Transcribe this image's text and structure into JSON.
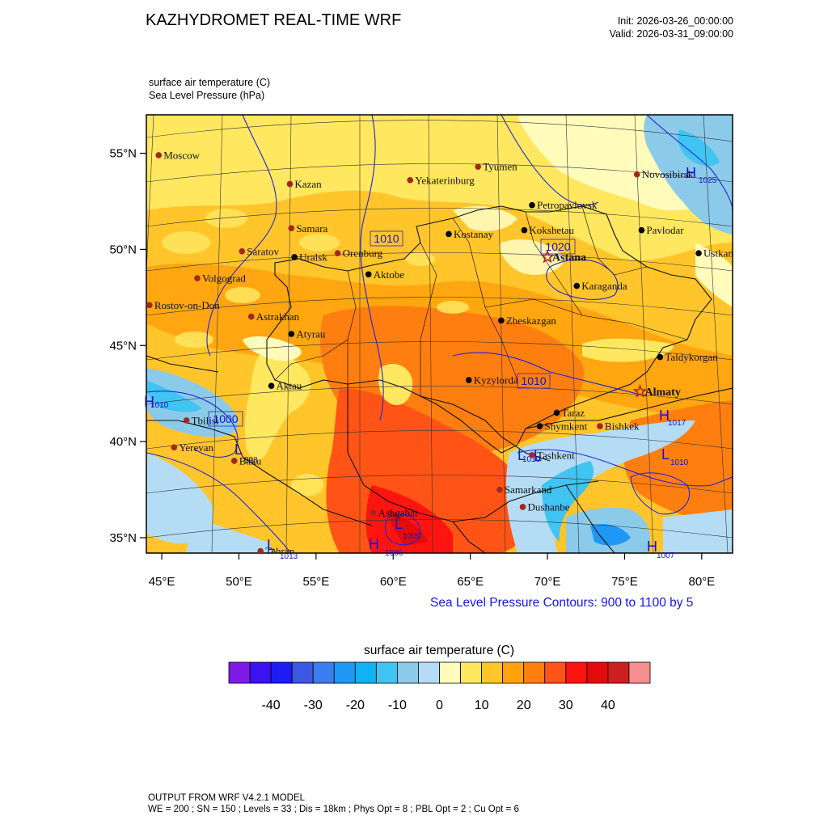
{
  "header": {
    "title": "KAZHYDROMET REAL-TIME WRF",
    "init": "Init: 2026-03-26_00:00:00",
    "valid": "Valid: 2026-03-31_09:00:00",
    "field1": "surface air temperature   (C)",
    "field2": "Sea Level Pressure   (hPa)"
  },
  "map": {
    "lon_range": [
      44,
      82
    ],
    "lat_range": [
      34.2,
      57
    ],
    "lat_ticks": [
      {
        "value": 55,
        "label": "55°N"
      },
      {
        "value": 50,
        "label": "50°N"
      },
      {
        "value": 45,
        "label": "45°N"
      },
      {
        "value": 40,
        "label": "40°N"
      },
      {
        "value": 35,
        "label": "35°N"
      }
    ],
    "lon_ticks": [
      {
        "value": 45,
        "label": "45°E"
      },
      {
        "value": 50,
        "label": "50°E"
      },
      {
        "value": 55,
        "label": "55°E"
      },
      {
        "value": 60,
        "label": "60°E"
      },
      {
        "value": 65,
        "label": "65°E"
      },
      {
        "value": 70,
        "label": "70°E"
      },
      {
        "value": 75,
        "label": "75°E"
      },
      {
        "value": 80,
        "label": "80°E"
      }
    ],
    "cities": [
      {
        "name": "Moscow",
        "lon": 44.8,
        "lat": 54.9,
        "type": "intl"
      },
      {
        "name": "Kazan",
        "lon": 53.3,
        "lat": 53.4,
        "type": "intl"
      },
      {
        "name": "Samara",
        "lon": 53.4,
        "lat": 51.1,
        "type": "intl"
      },
      {
        "name": "Saratov",
        "lon": 50.2,
        "lat": 49.9,
        "type": "intl"
      },
      {
        "name": "Volgograd",
        "lon": 47.3,
        "lat": 48.5,
        "type": "intl"
      },
      {
        "name": "Rostov-on-Don",
        "lon": 44.2,
        "lat": 47.1,
        "type": "intl"
      },
      {
        "name": "Astrakhan",
        "lon": 50.8,
        "lat": 46.5,
        "type": "intl"
      },
      {
        "name": "Tyumen",
        "lon": 65.5,
        "lat": 54.3,
        "type": "intl"
      },
      {
        "name": "Yekaterinburg",
        "lon": 61.1,
        "lat": 53.6,
        "type": "intl"
      },
      {
        "name": "Novosibirsk",
        "lon": 75.8,
        "lat": 53.9,
        "type": "intl"
      },
      {
        "name": "Tbilisi",
        "lon": 46.6,
        "lat": 41.1,
        "type": "intl"
      },
      {
        "name": "Yerevan",
        "lon": 45.8,
        "lat": 39.7,
        "type": "intl"
      },
      {
        "name": "Baku",
        "lon": 49.7,
        "lat": 39.0,
        "type": "intl"
      },
      {
        "name": "Tehran",
        "lon": 51.4,
        "lat": 34.3,
        "type": "intl"
      },
      {
        "name": "Ashgabat",
        "lon": 58.7,
        "lat": 36.3,
        "type": "intl"
      },
      {
        "name": "Samarkand",
        "lon": 66.9,
        "lat": 37.5,
        "type": "intl"
      },
      {
        "name": "Dushanbe",
        "lon": 68.4,
        "lat": 36.6,
        "type": "intl"
      },
      {
        "name": "Tashkent",
        "lon": 69.0,
        "lat": 39.3,
        "type": "intl"
      },
      {
        "name": "Bishkek",
        "lon": 73.4,
        "lat": 40.8,
        "type": "intl"
      },
      {
        "name": "Petropavlovsk",
        "lon": 69.0,
        "lat": 52.3,
        "type": "kz"
      },
      {
        "name": "Kokshetau",
        "lon": 68.5,
        "lat": 51.0,
        "type": "kz"
      },
      {
        "name": "Kostanay",
        "lon": 63.6,
        "lat": 50.8,
        "type": "kz"
      },
      {
        "name": "Pavlodar",
        "lon": 76.1,
        "lat": 51.0,
        "type": "kz"
      },
      {
        "name": "Uralsk",
        "lon": 53.6,
        "lat": 49.6,
        "type": "kz"
      },
      {
        "name": "Orenburg",
        "lon": 56.4,
        "lat": 49.8,
        "type": "intl"
      },
      {
        "name": "Aktobe",
        "lon": 58.4,
        "lat": 48.7,
        "type": "kz"
      },
      {
        "name": "Ustkamen",
        "lon": 79.8,
        "lat": 49.8,
        "type": "kz"
      },
      {
        "name": "Karaganda",
        "lon": 71.9,
        "lat": 48.1,
        "type": "kz"
      },
      {
        "name": "Atyrau",
        "lon": 53.4,
        "lat": 45.6,
        "type": "kz"
      },
      {
        "name": "Zheskazgan",
        "lon": 67.0,
        "lat": 46.3,
        "type": "kz"
      },
      {
        "name": "Taldykorgan",
        "lon": 77.3,
        "lat": 44.4,
        "type": "kz"
      },
      {
        "name": "Kyzylorda",
        "lon": 64.9,
        "lat": 43.2,
        "type": "kz"
      },
      {
        "name": "Aktau",
        "lon": 52.1,
        "lat": 42.9,
        "type": "kz"
      },
      {
        "name": "Taraz",
        "lon": 70.6,
        "lat": 41.5,
        "type": "kz"
      },
      {
        "name": "Shymkent",
        "lon": 69.5,
        "lat": 40.8,
        "type": "kz"
      },
      {
        "name": "Astana",
        "lon": 70.0,
        "lat": 49.6,
        "type": "capital"
      },
      {
        "name": "Almaty",
        "lon": 76.0,
        "lat": 42.6,
        "type": "capital"
      }
    ],
    "pressure_labels": [
      "1010",
      "1020",
      "1010",
      "1000",
      "1010",
      "1010",
      "1000",
      "1017",
      "1010",
      "1025",
      "1006",
      "1013",
      "1007",
      "998"
    ],
    "hl_markers": [
      "H",
      "L",
      "H",
      "L",
      "L",
      "H",
      "L",
      "L",
      "L",
      "H",
      "H"
    ]
  },
  "contour_note": "Sea Level Pressure Contours: 900 to 1100 by 5",
  "colorbar": {
    "title": "surface air temperature  (C)",
    "colors": [
      "#7f1ae8",
      "#3b12f0",
      "#1c1cf5",
      "#3a58e2",
      "#3a7ef0",
      "#1f98f5",
      "#11b1f6",
      "#40c4f2",
      "#8ccaea",
      "#b4dcf5",
      "#fffbbb",
      "#ffe760",
      "#ffc52a",
      "#ffa20e",
      "#ff7e10",
      "#ff5415",
      "#ff1410",
      "#e30b0b",
      "#cc2020",
      "#f58e8e"
    ],
    "labels": [
      "-40",
      "-30",
      "-20",
      "-10",
      "0",
      "10",
      "20",
      "30",
      "40"
    ]
  },
  "footer": {
    "line1": "OUTPUT FROM WRF V4.2.1 MODEL",
    "line2": "WE = 200 ; SN = 150 ; Levels = 33 ; Dis = 18km ; Phys Opt = 8 ; PBL Opt = 2 ; Cu Opt = 6"
  }
}
